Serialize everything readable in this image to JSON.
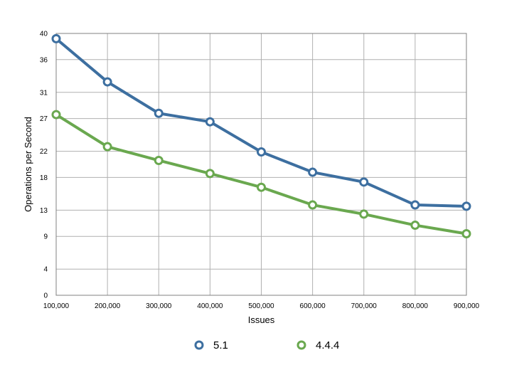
{
  "chart_data": {
    "type": "line",
    "title": "",
    "xlabel": "Issues",
    "ylabel": "Operations per Second",
    "x": [
      100000,
      200000,
      300000,
      400000,
      500000,
      600000,
      700000,
      800000,
      900000
    ],
    "x_tick_labels": [
      "100,000",
      "200,000",
      "300,000",
      "400,000",
      "500,000",
      "600,000",
      "700,000",
      "800,000",
      "900,000"
    ],
    "y_ticks": [
      0,
      4,
      9,
      13,
      18,
      22,
      27,
      31,
      36,
      40
    ],
    "ylim": [
      0,
      40
    ],
    "grid": true,
    "legend_position": "bottom",
    "series": [
      {
        "name": "5.1",
        "color": "#3d6fa0",
        "values": [
          39.2,
          32.6,
          27.8,
          26.5,
          21.9,
          18.8,
          17.3,
          13.8,
          13.6
        ]
      },
      {
        "name": "4.4.4",
        "color": "#6aa84f",
        "values": [
          27.6,
          22.7,
          20.6,
          18.6,
          16.5,
          13.8,
          12.4,
          10.7,
          9.4
        ]
      }
    ]
  }
}
